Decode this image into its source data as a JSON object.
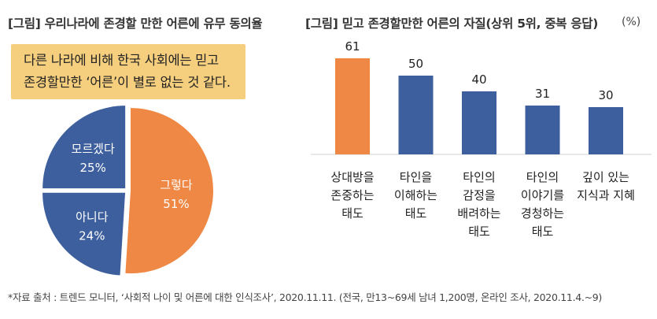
{
  "left_title": "[그림] 우리나라에 존경할 만한 어른에 유무 동의율",
  "right_title": "[그림] 믿고 존경할만한 어른의 자질(상위 5위, 중복 응답)",
  "unit": "(%)",
  "callout": {
    "line1": "다른 나라에 비해 한국 사회에는 믿고",
    "line2": "존경할만한 ‘어른’이 별로 없는 것 같다."
  },
  "footnote": "*자료 출처 : 트렌드 모니터, ‘사회적 나이 및 어른에 대한 인식조사’, 2020.11.11. (전국, 만13~69세 남녀 1,200명, 온라인 조사, 2020.11.4.~9)",
  "chart_data": [
    {
      "type": "pie",
      "title": "[그림] 우리나라에 존경할 만한 어른에 유무 동의율",
      "slices": [
        {
          "label": "그렇다",
          "value": 51,
          "display": "51%",
          "color": "#ef8844"
        },
        {
          "label": "아니다",
          "value": 24,
          "display": "24%",
          "color": "#3d5f9e"
        },
        {
          "label": "모르겠다",
          "value": 25,
          "display": "25%",
          "color": "#3d5f9e"
        }
      ]
    },
    {
      "type": "bar",
      "title": "[그림] 믿고 존경할만한 어른의 자질(상위 5위, 중복 응답)",
      "ylabel": "(%)",
      "ylim": [
        0,
        61
      ],
      "categories": [
        [
          "상대방을",
          "존중하는",
          "태도"
        ],
        [
          "타인을",
          "이해하는",
          "태도"
        ],
        [
          "타인의",
          "감정을",
          "배려하는",
          "태도"
        ],
        [
          "타인의",
          "이야기를",
          "경청하는",
          "태도"
        ],
        [
          "깊이 있는",
          "지식과 지혜"
        ]
      ],
      "values": [
        61,
        50,
        40,
        31,
        30
      ],
      "colors": [
        "#ef8844",
        "#3d5f9e",
        "#3d5f9e",
        "#3d5f9e",
        "#3d5f9e"
      ]
    }
  ]
}
